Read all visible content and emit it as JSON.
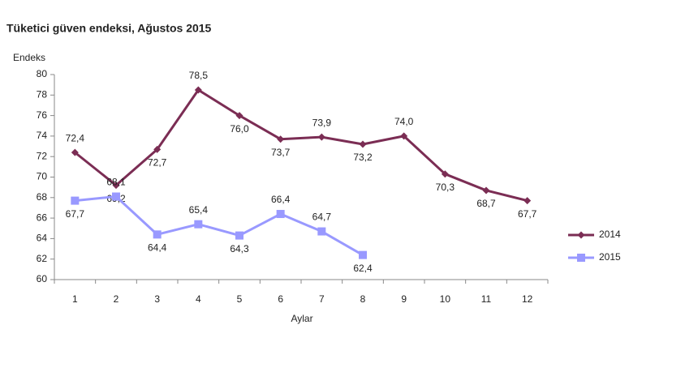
{
  "chart_data": {
    "type": "line",
    "title": "Tüketici güven endeksi, Ağustos 2015",
    "y_label": "Endeks",
    "x_label": "Aylar",
    "categories": [
      "1",
      "2",
      "3",
      "4",
      "5",
      "6",
      "7",
      "8",
      "9",
      "10",
      "11",
      "12"
    ],
    "series": [
      {
        "name": "2014",
        "color": "#7b2d54",
        "marker": "diamond",
        "values": [
          72.4,
          69.2,
          72.7,
          78.5,
          76.0,
          73.7,
          73.9,
          73.2,
          74.0,
          70.3,
          68.7,
          67.7
        ],
        "value_labels": [
          "72,4",
          "69,2",
          "72,7",
          "78,5",
          "76,0",
          "73,7",
          "73,9",
          "73,2",
          "74,0",
          "70,3",
          "68,7",
          "67,7"
        ]
      },
      {
        "name": "2015",
        "color": "#9999ff",
        "marker": "square",
        "values": [
          67.7,
          68.1,
          64.4,
          65.4,
          64.3,
          66.4,
          64.7,
          62.4,
          null,
          null,
          null,
          null
        ],
        "value_labels": [
          "67,7",
          "68,1",
          "64,4",
          "65,4",
          "64,3",
          "66,4",
          "64,7",
          "62,4",
          null,
          null,
          null,
          null
        ]
      }
    ],
    "ylim": [
      60,
      80
    ],
    "yticks": [
      60,
      62,
      64,
      66,
      68,
      70,
      72,
      74,
      76,
      78,
      80
    ],
    "grid": false,
    "legend": "right"
  }
}
